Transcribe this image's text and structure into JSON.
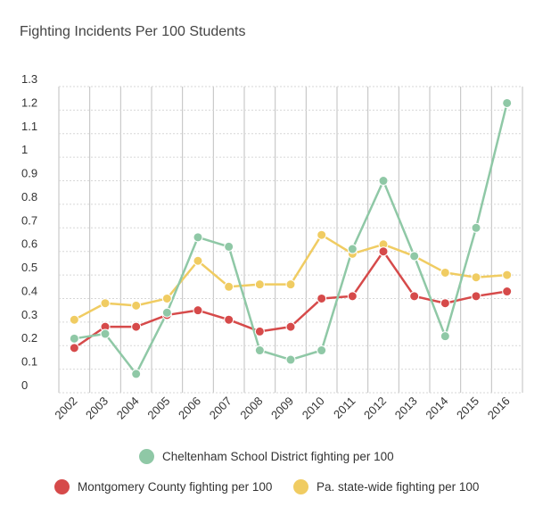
{
  "chart_data": {
    "type": "line",
    "title": "Fighting Incidents Per 100 Students",
    "xlabel": "",
    "ylabel": "",
    "categories": [
      "2002",
      "2003",
      "2004",
      "2005",
      "2006",
      "2007",
      "2008",
      "2009",
      "2010",
      "2011",
      "2012",
      "2013",
      "2014",
      "2015",
      "2016"
    ],
    "y_ticks": [
      "0",
      "0.1",
      "0.2",
      "0.3",
      "0.4",
      "0.5",
      "0.6",
      "0.7",
      "0.8",
      "0.9",
      "1",
      "1.1",
      "1.2",
      "1.3"
    ],
    "ylim": [
      0,
      1.3
    ],
    "grid": true,
    "legend_position": "bottom",
    "series": [
      {
        "name": "Cheltenham School District fighting per 100",
        "color": "#8fc8a6",
        "values": [
          0.23,
          0.25,
          0.08,
          0.34,
          0.66,
          0.62,
          0.18,
          0.14,
          0.18,
          0.61,
          0.9,
          0.58,
          0.24,
          0.7,
          1.23
        ]
      },
      {
        "name": "Montgomery County fighting per 100",
        "color": "#d64a4a",
        "values": [
          0.19,
          0.28,
          0.28,
          0.33,
          0.35,
          0.31,
          0.26,
          0.28,
          0.4,
          0.41,
          0.6,
          0.41,
          0.38,
          0.41,
          0.43
        ]
      },
      {
        "name": "Pa. state-wide fighting per 100",
        "color": "#f0cc62",
        "values": [
          0.31,
          0.38,
          0.37,
          0.4,
          0.56,
          0.45,
          0.46,
          0.46,
          0.67,
          0.59,
          0.63,
          0.58,
          0.51,
          0.49,
          0.5
        ]
      }
    ]
  }
}
